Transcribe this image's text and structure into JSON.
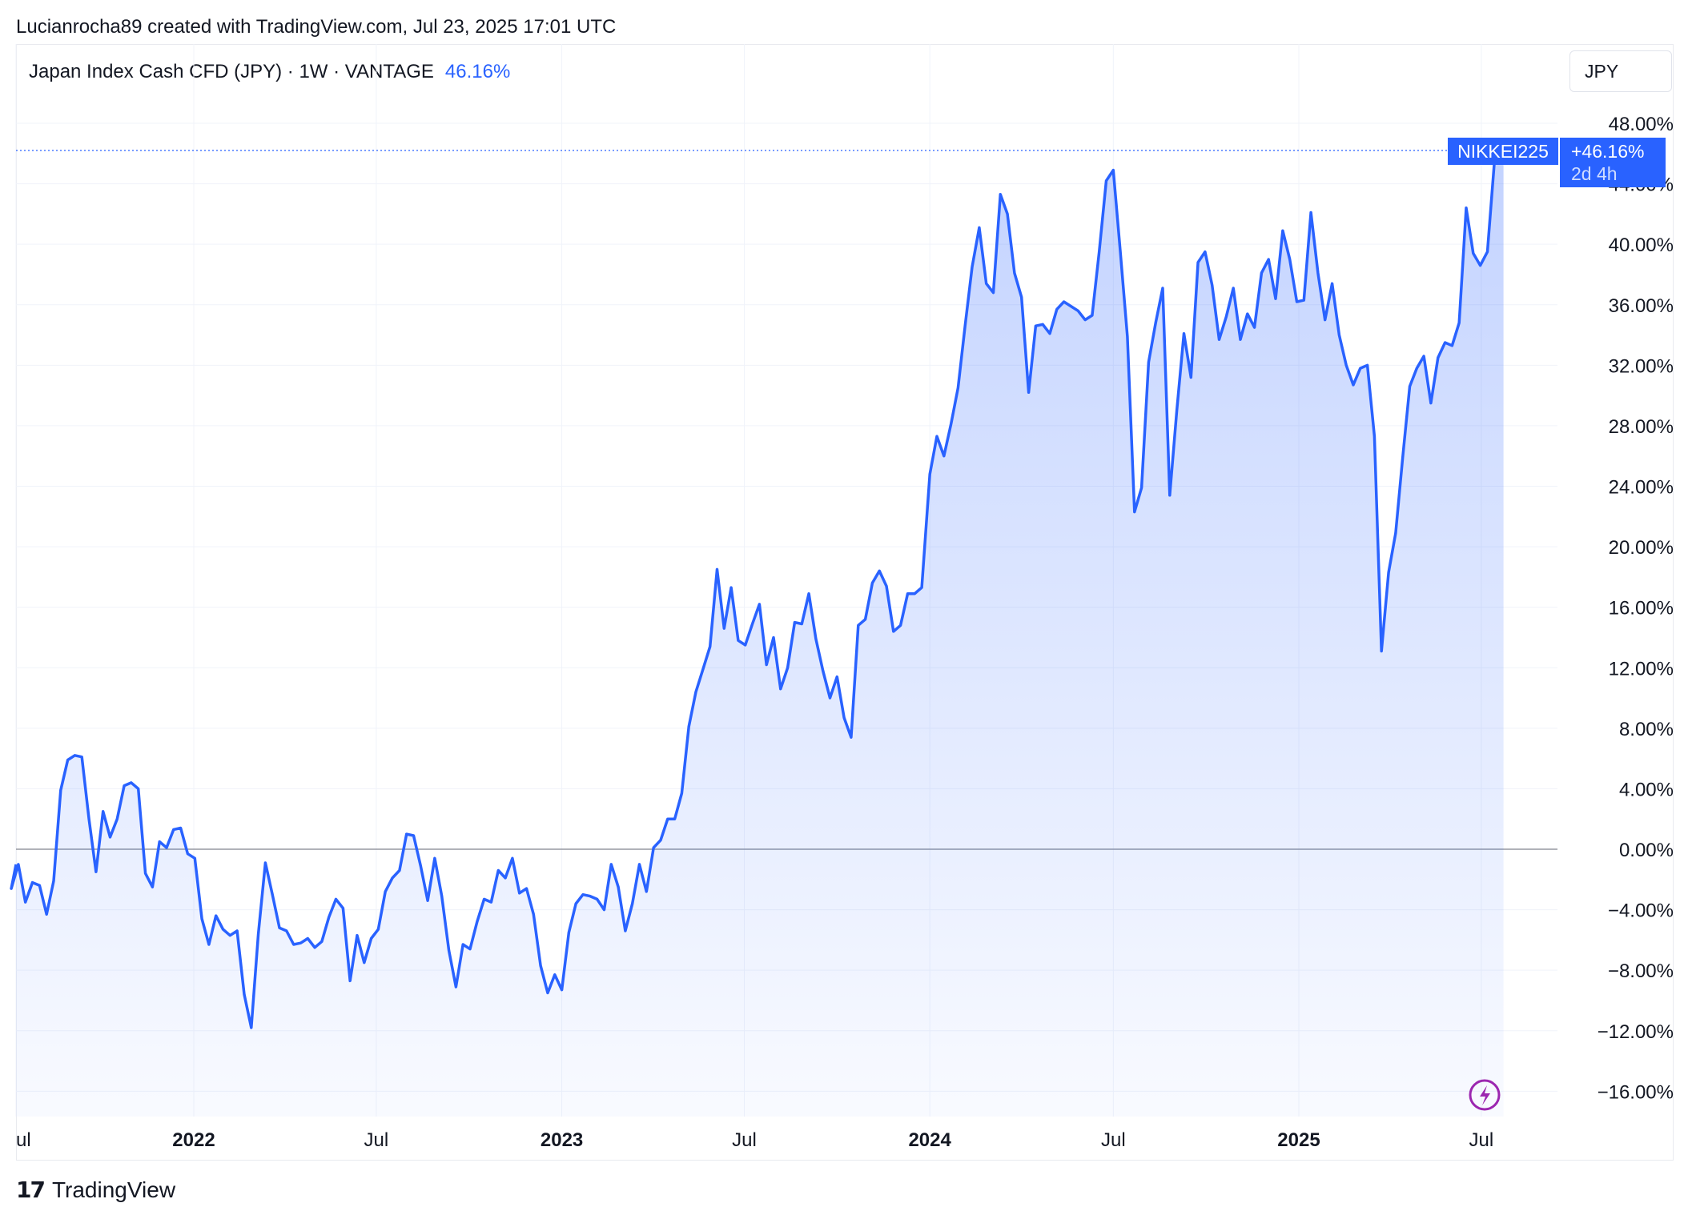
{
  "attribution": "Lucianrocha89 created with TradingView.com, Jul 23, 2025 17:01 UTC",
  "legend": {
    "symbol": "Japan Index Cash CFD (JPY) · 1W · VANTAGE",
    "change": "46.16%"
  },
  "currency_button": "JPY",
  "footer": {
    "brand": "TradingView"
  },
  "last_label": {
    "name": "NIKKEI225",
    "value": "+46.16%",
    "countdown": "2d 4h"
  },
  "colors": {
    "line": "#2962ff",
    "fill": "#2962ff",
    "zero": "#9598a1",
    "grid": "#f0f3fa"
  },
  "icons": {
    "lightning": "lightning-icon"
  },
  "chart_data": {
    "type": "area",
    "ylim": [
      -18,
      50
    ],
    "y_ticks": [
      "48.00%",
      "44.00%",
      "40.00%",
      "36.00%",
      "32.00%",
      "28.00%",
      "24.00%",
      "20.00%",
      "16.00%",
      "12.00%",
      "8.00%",
      "4.00%",
      "0.00%",
      "−4.00%",
      "−8.00%",
      "−12.00%",
      "−16.00%"
    ],
    "x_ticks": [
      {
        "label": "ul",
        "bold": false
      },
      {
        "label": "2022",
        "bold": true
      },
      {
        "label": "Jul",
        "bold": false
      },
      {
        "label": "2023",
        "bold": true
      },
      {
        "label": "Jul",
        "bold": false
      },
      {
        "label": "2024",
        "bold": true
      },
      {
        "label": "Jul",
        "bold": false
      },
      {
        "label": "2025",
        "bold": true
      },
      {
        "label": "Jul",
        "bold": false
      }
    ],
    "x_tick_dates": [
      "2021-07-01",
      "2022-01-01",
      "2022-07-01",
      "2023-01-01",
      "2023-07-01",
      "2024-01-01",
      "2024-07-01",
      "2025-01-01",
      "2025-07-01"
    ],
    "x_range": [
      "2021-07-01",
      "2025-10-25"
    ],
    "series": [
      {
        "values": [
          [
            "2021-07-01",
            -1.0
          ],
          [
            "2021-07-04",
            -2.6
          ],
          [
            "2021-07-11",
            -1.0
          ],
          [
            "2021-07-18",
            -3.5
          ],
          [
            "2021-07-25",
            -2.2
          ],
          [
            "2021-08-01",
            -2.4
          ],
          [
            "2021-08-08",
            -4.3
          ],
          [
            "2021-08-15",
            -2.1
          ],
          [
            "2021-08-22",
            3.9
          ],
          [
            "2021-08-29",
            5.9
          ],
          [
            "2021-09-05",
            6.2
          ],
          [
            "2021-09-12",
            6.1
          ],
          [
            "2021-09-19",
            2.0
          ],
          [
            "2021-09-26",
            -1.5
          ],
          [
            "2021-10-03",
            2.5
          ],
          [
            "2021-10-10",
            0.8
          ],
          [
            "2021-10-17",
            2.0
          ],
          [
            "2021-10-24",
            4.2
          ],
          [
            "2021-10-31",
            4.4
          ],
          [
            "2021-11-07",
            4.0
          ],
          [
            "2021-11-14",
            -1.6
          ],
          [
            "2021-11-21",
            -2.5
          ],
          [
            "2021-11-28",
            0.5
          ],
          [
            "2021-12-05",
            0.1
          ],
          [
            "2021-12-12",
            1.3
          ],
          [
            "2021-12-19",
            1.4
          ],
          [
            "2021-12-26",
            -0.3
          ],
          [
            "2022-01-02",
            -0.6
          ],
          [
            "2022-01-09",
            -4.6
          ],
          [
            "2022-01-16",
            -6.3
          ],
          [
            "2022-01-23",
            -4.4
          ],
          [
            "2022-01-30",
            -5.3
          ],
          [
            "2022-02-06",
            -5.7
          ],
          [
            "2022-02-13",
            -5.4
          ],
          [
            "2022-02-20",
            -9.6
          ],
          [
            "2022-02-27",
            -11.8
          ],
          [
            "2022-03-06",
            -5.6
          ],
          [
            "2022-03-13",
            -0.9
          ],
          [
            "2022-03-20",
            -3.0
          ],
          [
            "2022-03-27",
            -5.2
          ],
          [
            "2022-04-03",
            -5.4
          ],
          [
            "2022-04-10",
            -6.3
          ],
          [
            "2022-04-17",
            -6.2
          ],
          [
            "2022-04-24",
            -5.9
          ],
          [
            "2022-05-01",
            -6.5
          ],
          [
            "2022-05-08",
            -6.1
          ],
          [
            "2022-05-15",
            -4.5
          ],
          [
            "2022-05-22",
            -3.3
          ],
          [
            "2022-05-29",
            -3.9
          ],
          [
            "2022-06-05",
            -8.7
          ],
          [
            "2022-06-12",
            -5.7
          ],
          [
            "2022-06-19",
            -7.5
          ],
          [
            "2022-06-26",
            -5.9
          ],
          [
            "2022-07-03",
            -5.3
          ],
          [
            "2022-07-10",
            -2.8
          ],
          [
            "2022-07-17",
            -1.9
          ],
          [
            "2022-07-24",
            -1.4
          ],
          [
            "2022-07-31",
            1.0
          ],
          [
            "2022-08-07",
            0.9
          ],
          [
            "2022-08-14",
            -1.1
          ],
          [
            "2022-08-21",
            -3.4
          ],
          [
            "2022-08-28",
            -0.6
          ],
          [
            "2022-09-04",
            -3.1
          ],
          [
            "2022-09-11",
            -6.7
          ],
          [
            "2022-09-18",
            -9.1
          ],
          [
            "2022-09-25",
            -6.3
          ],
          [
            "2022-10-02",
            -6.6
          ],
          [
            "2022-10-09",
            -4.8
          ],
          [
            "2022-10-16",
            -3.3
          ],
          [
            "2022-10-23",
            -3.5
          ],
          [
            "2022-10-30",
            -1.4
          ],
          [
            "2022-11-06",
            -1.9
          ],
          [
            "2022-11-13",
            -0.6
          ],
          [
            "2022-11-20",
            -2.9
          ],
          [
            "2022-11-27",
            -2.6
          ],
          [
            "2022-12-04",
            -4.3
          ],
          [
            "2022-12-11",
            -7.7
          ],
          [
            "2022-12-18",
            -9.5
          ],
          [
            "2022-12-25",
            -8.3
          ],
          [
            "2023-01-01",
            -9.3
          ],
          [
            "2023-01-08",
            -5.5
          ],
          [
            "2023-01-15",
            -3.6
          ],
          [
            "2023-01-22",
            -3.0
          ],
          [
            "2023-01-29",
            -3.1
          ],
          [
            "2023-02-05",
            -3.3
          ],
          [
            "2023-02-12",
            -4.0
          ],
          [
            "2023-02-19",
            -1.0
          ],
          [
            "2023-02-26",
            -2.5
          ],
          [
            "2023-03-05",
            -5.4
          ],
          [
            "2023-03-12",
            -3.6
          ],
          [
            "2023-03-19",
            -1.0
          ],
          [
            "2023-03-26",
            -2.8
          ],
          [
            "2023-04-02",
            0.1
          ],
          [
            "2023-04-09",
            0.6
          ],
          [
            "2023-04-16",
            2.0
          ],
          [
            "2023-04-23",
            2.0
          ],
          [
            "2023-04-30",
            3.7
          ],
          [
            "2023-05-07",
            8.1
          ],
          [
            "2023-05-14",
            10.4
          ],
          [
            "2023-05-21",
            11.9
          ],
          [
            "2023-05-28",
            13.4
          ],
          [
            "2023-06-04",
            18.5
          ],
          [
            "2023-06-11",
            14.6
          ],
          [
            "2023-06-18",
            17.3
          ],
          [
            "2023-06-25",
            13.8
          ],
          [
            "2023-07-02",
            13.5
          ],
          [
            "2023-07-09",
            14.9
          ],
          [
            "2023-07-16",
            16.2
          ],
          [
            "2023-07-23",
            12.2
          ],
          [
            "2023-07-30",
            14.0
          ],
          [
            "2023-08-06",
            10.6
          ],
          [
            "2023-08-13",
            12.0
          ],
          [
            "2023-08-20",
            15.0
          ],
          [
            "2023-08-27",
            14.9
          ],
          [
            "2023-09-03",
            16.9
          ],
          [
            "2023-09-10",
            13.9
          ],
          [
            "2023-09-17",
            11.8
          ],
          [
            "2023-09-24",
            10.0
          ],
          [
            "2023-10-01",
            11.4
          ],
          [
            "2023-10-08",
            8.7
          ],
          [
            "2023-10-15",
            7.4
          ],
          [
            "2023-10-22",
            14.8
          ],
          [
            "2023-10-29",
            15.2
          ],
          [
            "2023-11-05",
            17.6
          ],
          [
            "2023-11-12",
            18.4
          ],
          [
            "2023-11-19",
            17.4
          ],
          [
            "2023-11-26",
            14.4
          ],
          [
            "2023-12-03",
            14.8
          ],
          [
            "2023-12-10",
            16.9
          ],
          [
            "2023-12-17",
            16.9
          ],
          [
            "2023-12-24",
            17.3
          ],
          [
            "2024-01-01",
            24.8
          ],
          [
            "2024-01-08",
            27.3
          ],
          [
            "2024-01-15",
            26.0
          ],
          [
            "2024-01-22",
            28.1
          ],
          [
            "2024-01-29",
            30.5
          ],
          [
            "2024-02-05",
            34.6
          ],
          [
            "2024-02-12",
            38.5
          ],
          [
            "2024-02-19",
            41.1
          ],
          [
            "2024-02-26",
            37.4
          ],
          [
            "2024-03-04",
            36.8
          ],
          [
            "2024-03-11",
            43.3
          ],
          [
            "2024-03-18",
            42.0
          ],
          [
            "2024-03-25",
            38.1
          ],
          [
            "2024-04-01",
            36.5
          ],
          [
            "2024-04-08",
            30.2
          ],
          [
            "2024-04-15",
            34.6
          ],
          [
            "2024-04-22",
            34.7
          ],
          [
            "2024-04-29",
            34.1
          ],
          [
            "2024-05-06",
            35.7
          ],
          [
            "2024-05-13",
            36.2
          ],
          [
            "2024-05-20",
            35.9
          ],
          [
            "2024-05-27",
            35.6
          ],
          [
            "2024-06-03",
            35.0
          ],
          [
            "2024-06-10",
            35.3
          ],
          [
            "2024-06-17",
            39.5
          ],
          [
            "2024-06-24",
            44.2
          ],
          [
            "2024-07-01",
            44.9
          ],
          [
            "2024-07-08",
            39.5
          ],
          [
            "2024-07-15",
            33.9
          ],
          [
            "2024-07-22",
            22.3
          ],
          [
            "2024-07-29",
            23.9
          ],
          [
            "2024-08-05",
            32.2
          ],
          [
            "2024-08-12",
            34.8
          ],
          [
            "2024-08-19",
            37.1
          ],
          [
            "2024-08-26",
            23.4
          ],
          [
            "2024-09-02",
            29.0
          ],
          [
            "2024-09-09",
            34.1
          ],
          [
            "2024-09-16",
            31.2
          ],
          [
            "2024-09-23",
            38.8
          ],
          [
            "2024-09-30",
            39.5
          ],
          [
            "2024-10-07",
            37.3
          ],
          [
            "2024-10-14",
            33.7
          ],
          [
            "2024-10-21",
            35.2
          ],
          [
            "2024-10-28",
            37.1
          ],
          [
            "2024-11-04",
            33.7
          ],
          [
            "2024-11-11",
            35.4
          ],
          [
            "2024-11-18",
            34.5
          ],
          [
            "2024-11-25",
            38.1
          ],
          [
            "2024-12-02",
            39.0
          ],
          [
            "2024-12-09",
            36.4
          ],
          [
            "2024-12-16",
            40.9
          ],
          [
            "2024-12-23",
            39.0
          ],
          [
            "2024-12-30",
            36.2
          ],
          [
            "2025-01-06",
            36.3
          ],
          [
            "2025-01-13",
            42.1
          ],
          [
            "2025-01-20",
            38.1
          ],
          [
            "2025-01-27",
            35.0
          ],
          [
            "2025-02-03",
            37.4
          ],
          [
            "2025-02-10",
            34.0
          ],
          [
            "2025-02-17",
            32.0
          ],
          [
            "2025-02-24",
            30.7
          ],
          [
            "2025-03-03",
            31.8
          ],
          [
            "2025-03-10",
            32.0
          ],
          [
            "2025-03-17",
            27.3
          ],
          [
            "2025-03-24",
            13.1
          ],
          [
            "2025-03-31",
            18.3
          ],
          [
            "2025-04-07",
            20.9
          ],
          [
            "2025-04-14",
            25.9
          ],
          [
            "2025-04-21",
            30.6
          ],
          [
            "2025-04-28",
            31.8
          ],
          [
            "2025-05-05",
            32.6
          ],
          [
            "2025-05-12",
            29.5
          ],
          [
            "2025-05-19",
            32.5
          ],
          [
            "2025-05-26",
            33.5
          ],
          [
            "2025-06-02",
            33.3
          ],
          [
            "2025-06-09",
            34.8
          ],
          [
            "2025-06-16",
            42.4
          ],
          [
            "2025-06-23",
            39.4
          ],
          [
            "2025-06-30",
            38.6
          ],
          [
            "2025-07-07",
            39.5
          ],
          [
            "2025-07-14",
            45.5
          ],
          [
            "2025-07-23",
            46.2
          ]
        ]
      }
    ]
  }
}
